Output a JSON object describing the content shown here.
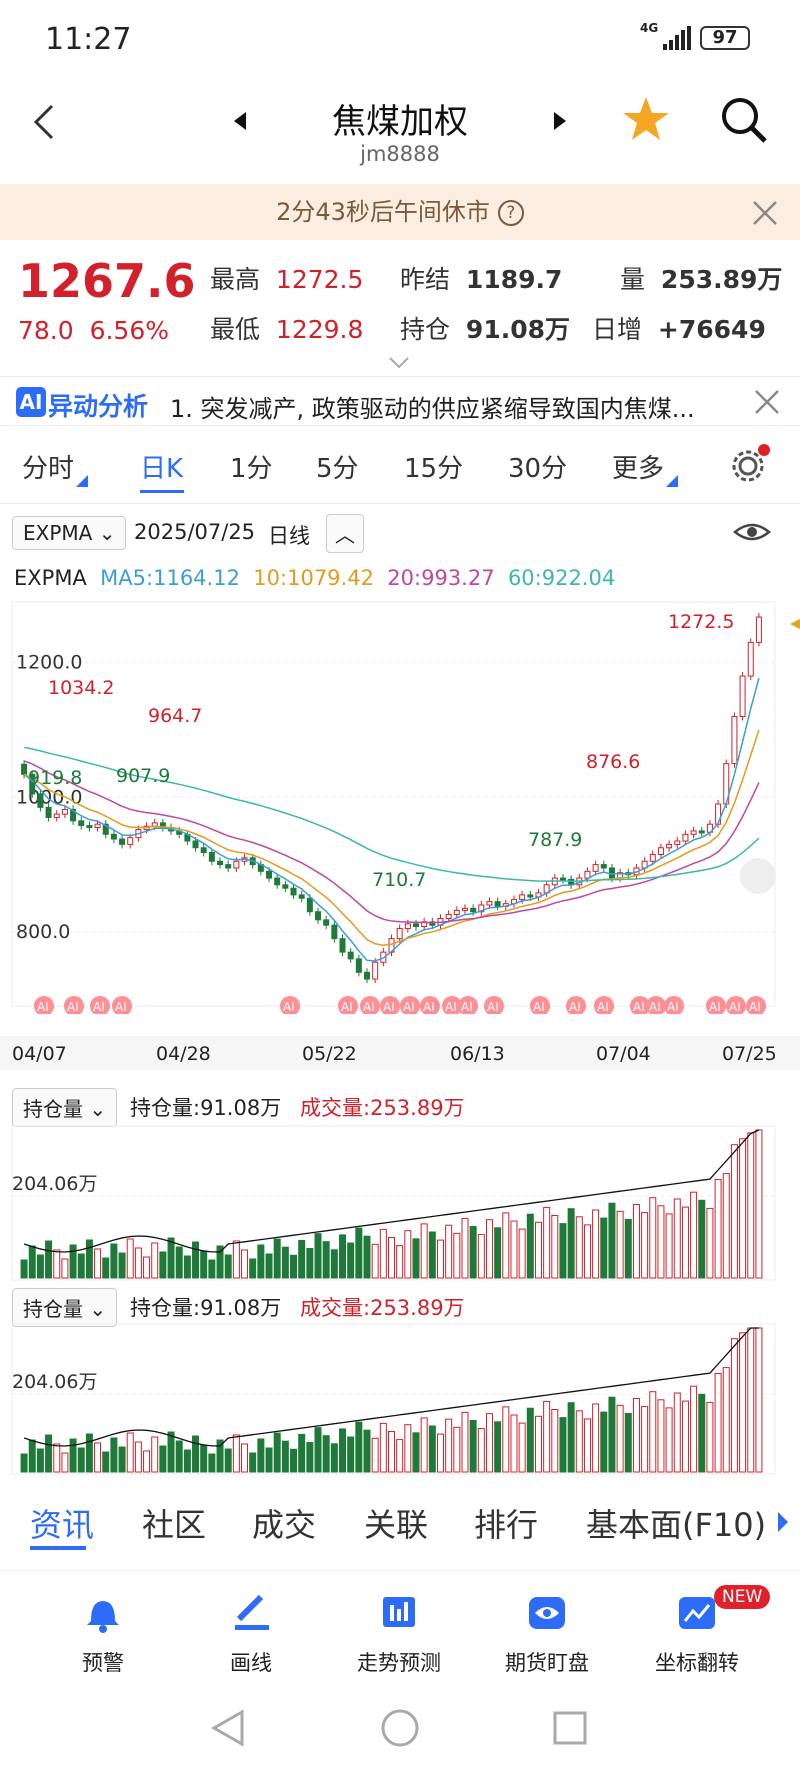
{
  "status": {
    "time": "11:27",
    "network": "4G",
    "battery": "97"
  },
  "header": {
    "title": "焦煤加权",
    "code": "jm8888"
  },
  "notice": {
    "text": "2分43秒后午间休市"
  },
  "quote": {
    "price": "1267.6",
    "change": "78.0",
    "change_pct": "6.56%",
    "high_label": "最高",
    "high": "1272.5",
    "low_label": "最低",
    "low": "1229.8",
    "prev_label": "昨结",
    "prev": "1189.7",
    "oi_label": "持仓",
    "oi": "91.08万",
    "vol_label": "量",
    "vol": "253.89万",
    "daily_label": "日增",
    "daily": "+76649"
  },
  "ai": {
    "badge": "AI",
    "title": "异动分析",
    "text": "1. 突发减产, 政策驱动的供应紧缩导致国内焦煤..."
  },
  "tabs": [
    {
      "label": "分时"
    },
    {
      "label": "日K"
    },
    {
      "label": "1分"
    },
    {
      "label": "5分"
    },
    {
      "label": "15分"
    },
    {
      "label": "30分"
    },
    {
      "label": "更多"
    }
  ],
  "indicator": {
    "name": "EXPMA",
    "date": "2025/07/25",
    "period": "日线"
  },
  "legend": {
    "name": "EXPMA",
    "ma5": "MA5:1164.12",
    "ma10": "10:1079.42",
    "ma20": "20:993.27",
    "ma60": "60:922.04",
    "colors": {
      "ma5": "#3a9fd8",
      "ma10": "#e39b1d",
      "ma20": "#c0479f",
      "ma60": "#3cb8a8",
      "up": "#d2212a",
      "down": "#1f7a3a"
    }
  },
  "chart_data": [
    {
      "type": "candlestick",
      "title": "",
      "y_ticks": [
        "1200.0",
        "1000.0",
        "800.0"
      ],
      "ylim": [
        690,
        1290
      ],
      "x_ticks": [
        "04/07",
        "04/28",
        "05/22",
        "06/13",
        "07/04",
        "07/25"
      ],
      "annotations": [
        "1272.5",
        "1034.2",
        "964.7",
        "919.8",
        "907.9",
        "876.6",
        "787.9",
        "710.7"
      ],
      "closes": [
        1034,
        1005,
        985,
        970,
        975,
        982,
        965,
        958,
        955,
        960,
        945,
        938,
        930,
        940,
        952,
        957,
        962,
        955,
        950,
        945,
        935,
        925,
        918,
        905,
        900,
        895,
        905,
        910,
        900,
        890,
        880,
        870,
        865,
        855,
        850,
        830,
        818,
        810,
        790,
        770,
        760,
        740,
        730,
        755,
        770,
        790,
        805,
        812,
        808,
        815,
        810,
        820,
        826,
        832,
        835,
        830,
        840,
        845,
        838,
        842,
        848,
        855,
        852,
        858,
        870,
        880,
        878,
        870,
        880,
        890,
        900,
        895,
        880,
        888,
        885,
        895,
        905,
        915,
        925,
        930,
        935,
        945,
        950,
        948,
        960,
        990,
        1050,
        1120,
        1180,
        1230,
        1267.6
      ],
      "ma_last": {
        "ma5": 1164.12,
        "ma10": 1079.42,
        "ma20": 993.27,
        "ma60": 922.04
      }
    },
    {
      "type": "bar",
      "title": "",
      "label": "持仓量:91.08万",
      "vol_label": "成交量:253.89万",
      "y_tick": "204.06万"
    },
    {
      "type": "bar",
      "title": "",
      "label": "持仓量:91.08万",
      "vol_label": "成交量:253.89万",
      "y_tick": "204.06万"
    }
  ],
  "sub_selector": "持仓量",
  "bottom_tabs": [
    "资讯",
    "社区",
    "成交",
    "关联",
    "排行",
    "基本面(F10)"
  ],
  "tools": [
    {
      "label": "预警",
      "icon": "bell-icon"
    },
    {
      "label": "画线",
      "icon": "pen-icon"
    },
    {
      "label": "走势预测",
      "icon": "book-chart-icon"
    },
    {
      "label": "期货盯盘",
      "icon": "eye-icon"
    },
    {
      "label": "坐标翻转",
      "icon": "flip-icon",
      "badge": "NEW"
    }
  ]
}
